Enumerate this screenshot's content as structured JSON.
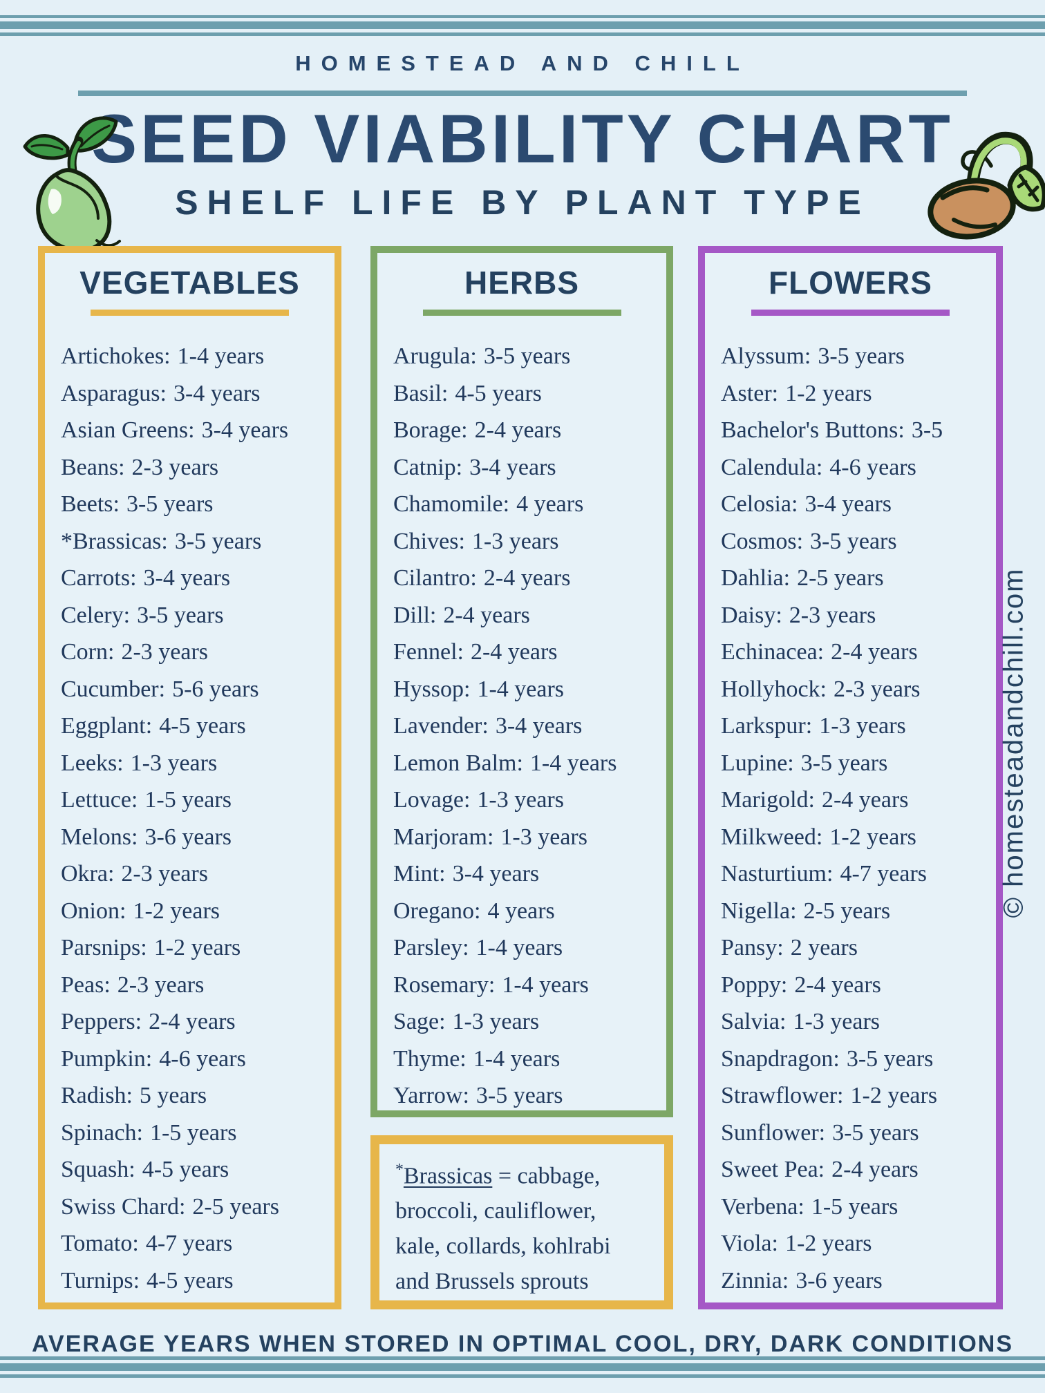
{
  "header": {
    "brand": "HOMESTEAD AND CHILL",
    "subtitle": "SHELF LIFE BY PLANT TYPE"
  },
  "footer": {
    "text": "AVERAGE YEARS WHEN STORED IN OPTIMAL COOL, DRY, DARK CONDITIONS",
    "copyright": "© homesteadandchill.com"
  },
  "colors": {
    "background": "#e4f0f7",
    "stripe": "#6d9fae",
    "navy": "#24415f",
    "vegetables_accent": "#e7b64a",
    "herbs_accent": "#7da766",
    "flowers_accent": "#a558c6"
  },
  "icons": {
    "left": "sprouting-bean-seed-icon",
    "right": "germinating-seed-icon"
  },
  "chart_data": {
    "type": "table",
    "title": "SEED VIABILITY CHART",
    "subtitle": "SHELF LIFE BY PLANT TYPE",
    "groups": [
      {
        "title": "VEGETABLES",
        "accent": "#e7b64a",
        "items": [
          {
            "plant": "Artichokes",
            "years": "1-4 years"
          },
          {
            "plant": "Asparagus",
            "years": "3-4 years"
          },
          {
            "plant": "Asian Greens",
            "years": "3-4 years"
          },
          {
            "plant": "Beans",
            "years": "2-3 years"
          },
          {
            "plant": "Beets",
            "years": "3-5 years"
          },
          {
            "plant": "*Brassicas",
            "years": "3-5 years"
          },
          {
            "plant": "Carrots",
            "years": "3-4 years"
          },
          {
            "plant": "Celery",
            "years": "3-5 years"
          },
          {
            "plant": "Corn",
            "years": "2-3 years"
          },
          {
            "plant": "Cucumber",
            "years": "5-6 years"
          },
          {
            "plant": "Eggplant",
            "years": "4-5 years"
          },
          {
            "plant": "Leeks",
            "years": "1-3 years"
          },
          {
            "plant": "Lettuce",
            "years": "1-5 years"
          },
          {
            "plant": "Melons",
            "years": "3-6 years"
          },
          {
            "plant": "Okra",
            "years": "2-3 years"
          },
          {
            "plant": "Onion",
            "years": "1-2 years"
          },
          {
            "plant": "Parsnips",
            "years": "1-2 years"
          },
          {
            "plant": "Peas",
            "years": "2-3 years"
          },
          {
            "plant": "Peppers",
            "years": "2-4 years"
          },
          {
            "plant": "Pumpkin",
            "years": "4-6 years"
          },
          {
            "plant": "Radish",
            "years": "5 years"
          },
          {
            "plant": "Spinach",
            "years": "1-5 years"
          },
          {
            "plant": "Squash",
            "years": "4-5 years"
          },
          {
            "plant": "Swiss Chard",
            "years": "2-5 years"
          },
          {
            "plant": "Tomato",
            "years": "4-7 years"
          },
          {
            "plant": "Turnips",
            "years": "4-5 years"
          }
        ]
      },
      {
        "title": "HERBS",
        "accent": "#7da766",
        "items": [
          {
            "plant": "Arugula",
            "years": "3-5 years"
          },
          {
            "plant": "Basil",
            "years": "4-5 years"
          },
          {
            "plant": "Borage",
            "years": "2-4 years"
          },
          {
            "plant": "Catnip",
            "years": "3-4 years"
          },
          {
            "plant": "Chamomile",
            "years": "4 years"
          },
          {
            "plant": "Chives",
            "years": "1-3 years"
          },
          {
            "plant": "Cilantro",
            "years": "2-4 years"
          },
          {
            "plant": "Dill",
            "years": "2-4 years"
          },
          {
            "plant": "Fennel",
            "years": "2-4 years"
          },
          {
            "plant": "Hyssop",
            "years": "1-4 years"
          },
          {
            "plant": "Lavender",
            "years": "3-4 years"
          },
          {
            "plant": "Lemon Balm",
            "years": "1-4 years"
          },
          {
            "plant": "Lovage",
            "years": "1-3 years"
          },
          {
            "plant": "Marjoram",
            "years": "1-3 years"
          },
          {
            "plant": "Mint",
            "years": "3-4 years"
          },
          {
            "plant": "Oregano",
            "years": "4 years"
          },
          {
            "plant": "Parsley",
            "years": "1-4 years"
          },
          {
            "plant": "Rosemary",
            "years": "1-4 years"
          },
          {
            "plant": "Sage",
            "years": "1-3 years"
          },
          {
            "plant": "Thyme",
            "years": "1-4 years"
          },
          {
            "plant": "Yarrow",
            "years": "3-5 years"
          }
        ]
      },
      {
        "title": "FLOWERS",
        "accent": "#a558c6",
        "items": [
          {
            "plant": "Alyssum",
            "years": "3-5 years"
          },
          {
            "plant": "Aster",
            "years": "1-2 years"
          },
          {
            "plant": "Bachelor's Buttons",
            "years": "3-5"
          },
          {
            "plant": "Calendula",
            "years": "4-6 years"
          },
          {
            "plant": "Celosia",
            "years": "3-4 years"
          },
          {
            "plant": "Cosmos",
            "years": "3-5 years"
          },
          {
            "plant": "Dahlia",
            "years": "2-5 years"
          },
          {
            "plant": "Daisy",
            "years": "2-3 years"
          },
          {
            "plant": "Echinacea",
            "years": "2-4 years"
          },
          {
            "plant": "Hollyhock",
            "years": "2-3 years"
          },
          {
            "plant": "Larkspur",
            "years": "1-3 years"
          },
          {
            "plant": "Lupine",
            "years": "3-5 years"
          },
          {
            "plant": "Marigold",
            "years": "2-4 years"
          },
          {
            "plant": "Milkweed",
            "years": "1-2 years"
          },
          {
            "plant": "Nasturtium",
            "years": "4-7 years"
          },
          {
            "plant": "Nigella",
            "years": "2-5 years"
          },
          {
            "plant": "Pansy",
            "years": "2 years"
          },
          {
            "plant": "Poppy",
            "years": "2-4 years"
          },
          {
            "plant": "Salvia",
            "years": "1-3 years"
          },
          {
            "plant": "Snapdragon",
            "years": "3-5 years"
          },
          {
            "plant": "Strawflower",
            "years": "1-2 years"
          },
          {
            "plant": "Sunflower",
            "years": "3-5 years"
          },
          {
            "plant": "Sweet Pea",
            "years": "2-4 years"
          },
          {
            "plant": "Verbena",
            "years": "1-5 years"
          },
          {
            "plant": "Viola",
            "years": "1-2 years"
          },
          {
            "plant": "Zinnia",
            "years": "3-6 years"
          }
        ]
      }
    ],
    "note": {
      "accent": "#e7b64a",
      "asterisk": "*",
      "term": "Brassicas",
      "line1_rest": " = cabbage,",
      "lines": [
        "broccoli, cauliflower,",
        "kale, collards, kohlrabi",
        "and Brussels sprouts"
      ]
    },
    "footnote": "AVERAGE YEARS WHEN STORED IN OPTIMAL COOL, DRY, DARK CONDITIONS"
  }
}
